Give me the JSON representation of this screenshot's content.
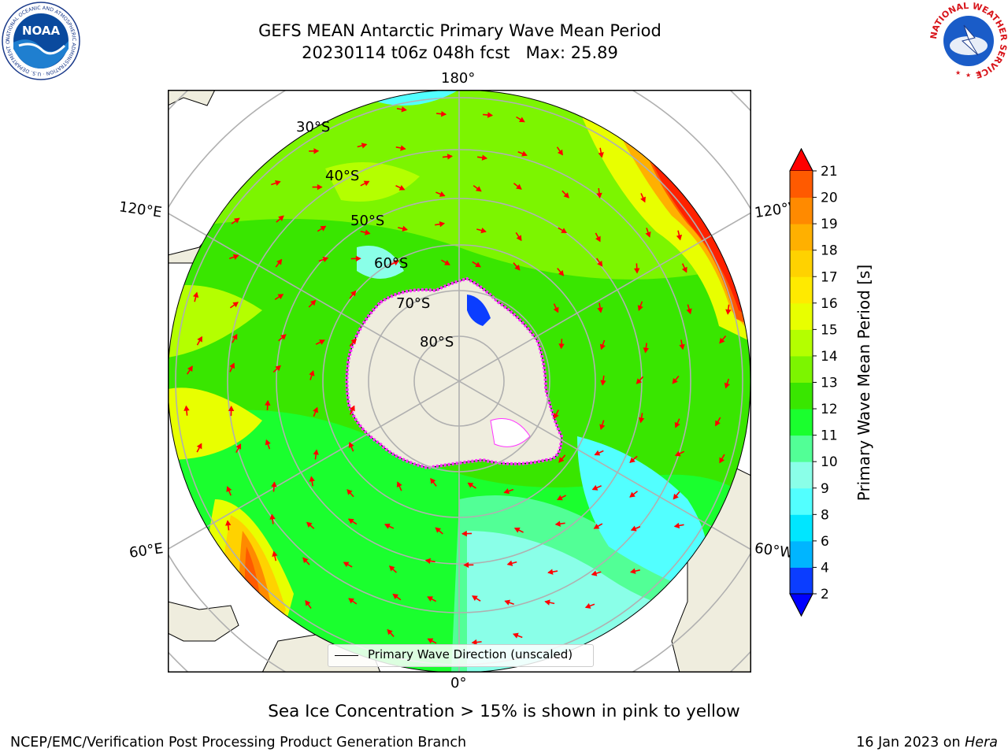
{
  "header": {
    "title_line1": "GEFS MEAN Antarctic Primary Wave Mean Period",
    "title_line2": "20230114 t06z 048h fcst   Max: 25.89"
  },
  "logos": {
    "left": "NOAA",
    "left_ring_text": "NATIONAL OCEANIC AND ATMOSPHERIC ADMINISTRATION · U.S. DEPARTMENT OF COMMERCE",
    "right_ring_text": "NATIONAL WEATHER SERVICE"
  },
  "map": {
    "projection": "south polar stereographic",
    "longitude_labels": [
      "180°",
      "120°E",
      "120°W",
      "60°E",
      "60°W",
      "0°"
    ],
    "latitude_labels": [
      "30°S",
      "40°S",
      "50°S",
      "60°S",
      "70°S",
      "80°S"
    ],
    "legend_label": "Primary Wave Direction (unscaled)",
    "arrow_color": "#ff0000",
    "land_color": "#efedde",
    "sea_ice_color": "#ff33ff"
  },
  "colorbar": {
    "label": "Primary Wave Mean Period [s]",
    "ticks": [
      "2",
      "4",
      "6",
      "8",
      "9",
      "10",
      "11",
      "12",
      "13",
      "14",
      "15",
      "16",
      "17",
      "18",
      "19",
      "20",
      "21"
    ],
    "colors": [
      "#0b3dff",
      "#00b5ff",
      "#00e6ff",
      "#52ffff",
      "#8affe8",
      "#52ff96",
      "#1aff2e",
      "#39e600",
      "#7cf500",
      "#b4ff00",
      "#e8ff00",
      "#ffea00",
      "#ffd200",
      "#ffb000",
      "#ff8a00",
      "#ff5a00",
      "#ff2200"
    ],
    "under_color": "#0000ff",
    "over_color": "#ff0000"
  },
  "bottom_note": "Sea Ice Concentration > 15% is shown in pink to yellow",
  "footer": {
    "left": "NCEP/EMC/Verification Post Processing Product Generation Branch",
    "right_date": "16 Jan 2023 on ",
    "right_host": "Hera"
  }
}
